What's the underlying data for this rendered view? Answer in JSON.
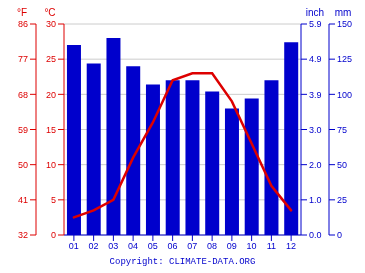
{
  "chart_data": {
    "type": "bar",
    "categories": [
      "01",
      "02",
      "03",
      "04",
      "05",
      "06",
      "07",
      "08",
      "09",
      "10",
      "11",
      "12"
    ],
    "series": [
      {
        "type": "bar",
        "color": "#0000cc",
        "values": [
          135,
          122,
          140,
          120,
          107,
          110,
          110,
          102,
          90,
          97,
          110,
          137
        ]
      },
      {
        "type": "line",
        "color": "#dd0000",
        "axis": "y2",
        "values": [
          2.5,
          3.5,
          5.0,
          11.0,
          16.0,
          22.0,
          23.0,
          23.0,
          19.0,
          13.0,
          7.0,
          3.5
        ]
      }
    ],
    "ylim": [
      0,
      150
    ],
    "yticks": [
      0,
      25,
      50,
      75,
      100,
      125,
      150
    ],
    "ylabel": "mm",
    "y2lim": [
      0,
      30
    ],
    "y2ticks": [
      0,
      5,
      10,
      15,
      20,
      25,
      30
    ],
    "y2label": "°C",
    "y3lim": [
      0,
      30
    ],
    "y3ticks": [
      {
        "value": 0,
        "label": "32"
      },
      {
        "value": 5,
        "label": "41"
      },
      {
        "value": 10,
        "label": "50"
      },
      {
        "value": 15,
        "label": "59"
      },
      {
        "value": 20,
        "label": "68"
      },
      {
        "value": 25,
        "label": "77"
      },
      {
        "value": 30,
        "label": "86"
      }
    ],
    "y3label": "°F",
    "y4lim": [
      0,
      150
    ],
    "y4ticks": [
      {
        "value": 0,
        "label": "0.0"
      },
      {
        "value": 25,
        "label": "1.0"
      },
      {
        "value": 50,
        "label": "2.0"
      },
      {
        "value": 75,
        "label": "3.0"
      },
      {
        "value": 100,
        "label": "3.9"
      },
      {
        "value": 125,
        "label": "4.9"
      },
      {
        "value": 150,
        "label": "5.9"
      }
    ],
    "y4label": "inch",
    "annotations": [
      "Copyright: CLIMATE-DATA.ORG"
    ],
    "grid": true
  }
}
